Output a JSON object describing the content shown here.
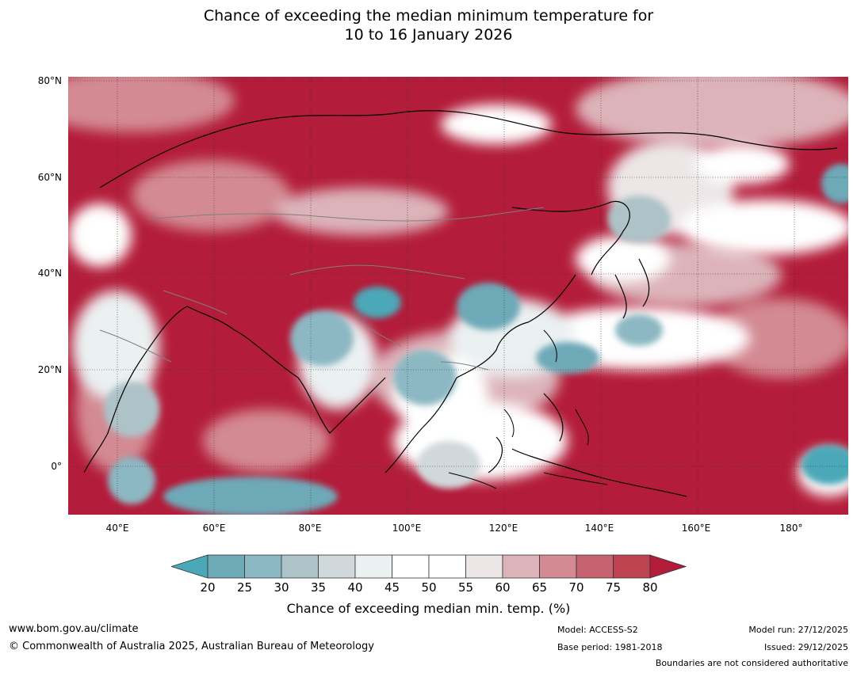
{
  "title": {
    "line1": "Chance of exceeding the median minimum temperature for",
    "line2": "10 to 16 January 2026"
  },
  "map": {
    "region": "Asia and western Pacific",
    "lon_range": [
      30,
      191
    ],
    "lat_range": [
      -10,
      81
    ],
    "lat_labels": [
      "80°N",
      "60°N",
      "40°N",
      "20°N",
      "0°"
    ],
    "lon_labels": [
      "40°E",
      "60°E",
      "80°E",
      "100°E",
      "120°E",
      "140°E",
      "160°E",
      "180°"
    ],
    "colors": {
      "very_high": "#b31c3a",
      "high": "#c24955",
      "mid_high": "#dca9b1",
      "neutral": "#ffffff",
      "low": "#d0d8db",
      "very_low": "#4ba8b8",
      "coast": "#000000",
      "border": "#808080"
    }
  },
  "colorbar": {
    "label": "Chance of exceeding median min. temp. (%)",
    "ticks": [
      "20",
      "25",
      "30",
      "35",
      "40",
      "45",
      "50",
      "55",
      "60",
      "65",
      "70",
      "75",
      "80"
    ],
    "colors": [
      "#4ba8b8",
      "#6ea9b8",
      "#8cb8c3",
      "#adc3c8",
      "#d0d8db",
      "#ebf0f1",
      "#ffffff",
      "#ffffff",
      "#ece6e7",
      "#dcb3b9",
      "#d38a93",
      "#c66370",
      "#bd4351",
      "#b31c3a"
    ]
  },
  "footer": {
    "url": "www.bom.gov.au/climate",
    "copyright": "© Commonwealth of Australia 2025, Australian Bureau of Meteorology",
    "model": "Model: ACCESS-S2",
    "base_period": "Base period: 1981-2018",
    "model_run": "Model run: 27/12/2025",
    "issued": "Issued: 29/12/2025",
    "disclaimer": "Boundaries are not considered authoritative"
  }
}
